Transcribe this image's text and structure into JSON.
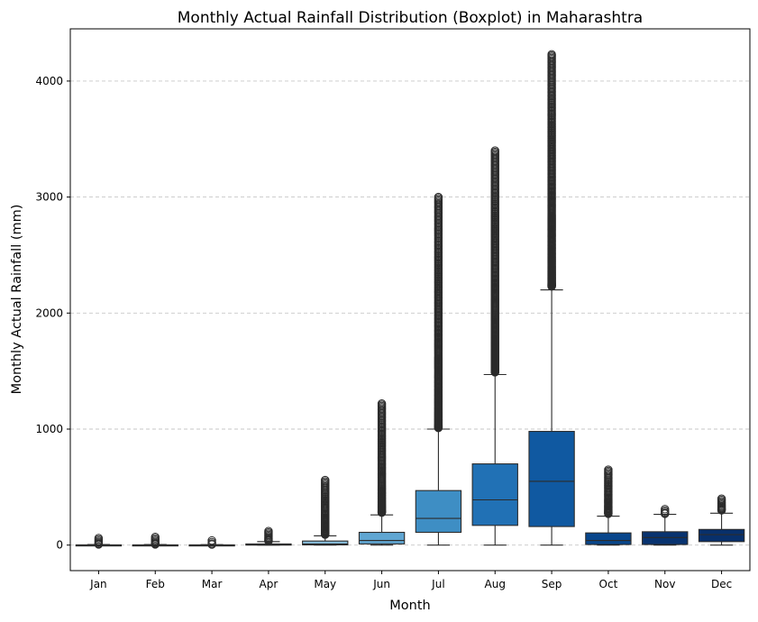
{
  "chart_data": {
    "type": "boxplot",
    "title": "Monthly Actual Rainfall Distribution (Boxplot) in Maharashtra",
    "xlabel": "Month",
    "ylabel": "Monthly Actual Rainfall (mm)",
    "ylim": [
      -220,
      4450
    ],
    "yticks": [
      0,
      1000,
      2000,
      3000,
      4000
    ],
    "grid": "horizontal-dashed",
    "categories": [
      "Jan",
      "Feb",
      "Mar",
      "Apr",
      "May",
      "Jun",
      "Jul",
      "Aug",
      "Sep",
      "Oct",
      "Nov",
      "Dec"
    ],
    "boxes": [
      {
        "month": "Jan",
        "whisker_low": 0,
        "q1": 0,
        "median": 0,
        "q3": 2,
        "whisker_high": 5,
        "outlier_min": 6,
        "outlier_max": 60,
        "color": "#f7fbff"
      },
      {
        "month": "Feb",
        "whisker_low": 0,
        "q1": 0,
        "median": 0,
        "q3": 2,
        "whisker_high": 5,
        "outlier_min": 6,
        "outlier_max": 70,
        "color": "#e2edf8"
      },
      {
        "month": "Mar",
        "whisker_low": 0,
        "q1": 0,
        "median": 0,
        "q3": 2,
        "whisker_high": 4,
        "outlier_min": 5,
        "outlier_max": 40,
        "color": "#cde0f1"
      },
      {
        "month": "Apr",
        "whisker_low": 0,
        "q1": 0,
        "median": 2,
        "q3": 10,
        "whisker_high": 30,
        "outlier_min": 35,
        "outlier_max": 120,
        "color": "#b0d2e8"
      },
      {
        "month": "May",
        "whisker_low": 0,
        "q1": 2,
        "median": 10,
        "q3": 35,
        "whisker_high": 80,
        "outlier_min": 90,
        "outlier_max": 560,
        "color": "#89bfdd"
      },
      {
        "month": "Jun",
        "whisker_low": 0,
        "q1": 10,
        "median": 40,
        "q3": 110,
        "whisker_high": 260,
        "outlier_min": 280,
        "outlier_max": 1220,
        "color": "#60a6d2"
      },
      {
        "month": "Jul",
        "whisker_low": 0,
        "q1": 110,
        "median": 230,
        "q3": 470,
        "whisker_high": 1000,
        "outlier_min": 1010,
        "outlier_max": 3000,
        "color": "#3e8ec4"
      },
      {
        "month": "Aug",
        "whisker_low": 0,
        "q1": 170,
        "median": 390,
        "q3": 700,
        "whisker_high": 1470,
        "outlier_min": 1490,
        "outlier_max": 3400,
        "color": "#2171b5"
      },
      {
        "month": "Sep",
        "whisker_low": 0,
        "q1": 160,
        "median": 550,
        "q3": 980,
        "whisker_high": 2200,
        "outlier_min": 2230,
        "outlier_max": 4230,
        "color": "#1059a1"
      },
      {
        "month": "Oct",
        "whisker_low": 0,
        "q1": 5,
        "median": 40,
        "q3": 105,
        "whisker_high": 250,
        "outlier_min": 270,
        "outlier_max": 650,
        "color": "#08468b"
      },
      {
        "month": "Nov",
        "whisker_low": 0,
        "q1": 5,
        "median": 65,
        "q3": 115,
        "whisker_high": 265,
        "outlier_min": 270,
        "outlier_max": 310,
        "color": "#083370"
      },
      {
        "month": "Dec",
        "whisker_low": 0,
        "q1": 30,
        "median": 90,
        "q3": 135,
        "whisker_high": 275,
        "outlier_min": 300,
        "outlier_max": 400,
        "color": "#08306b"
      }
    ]
  }
}
